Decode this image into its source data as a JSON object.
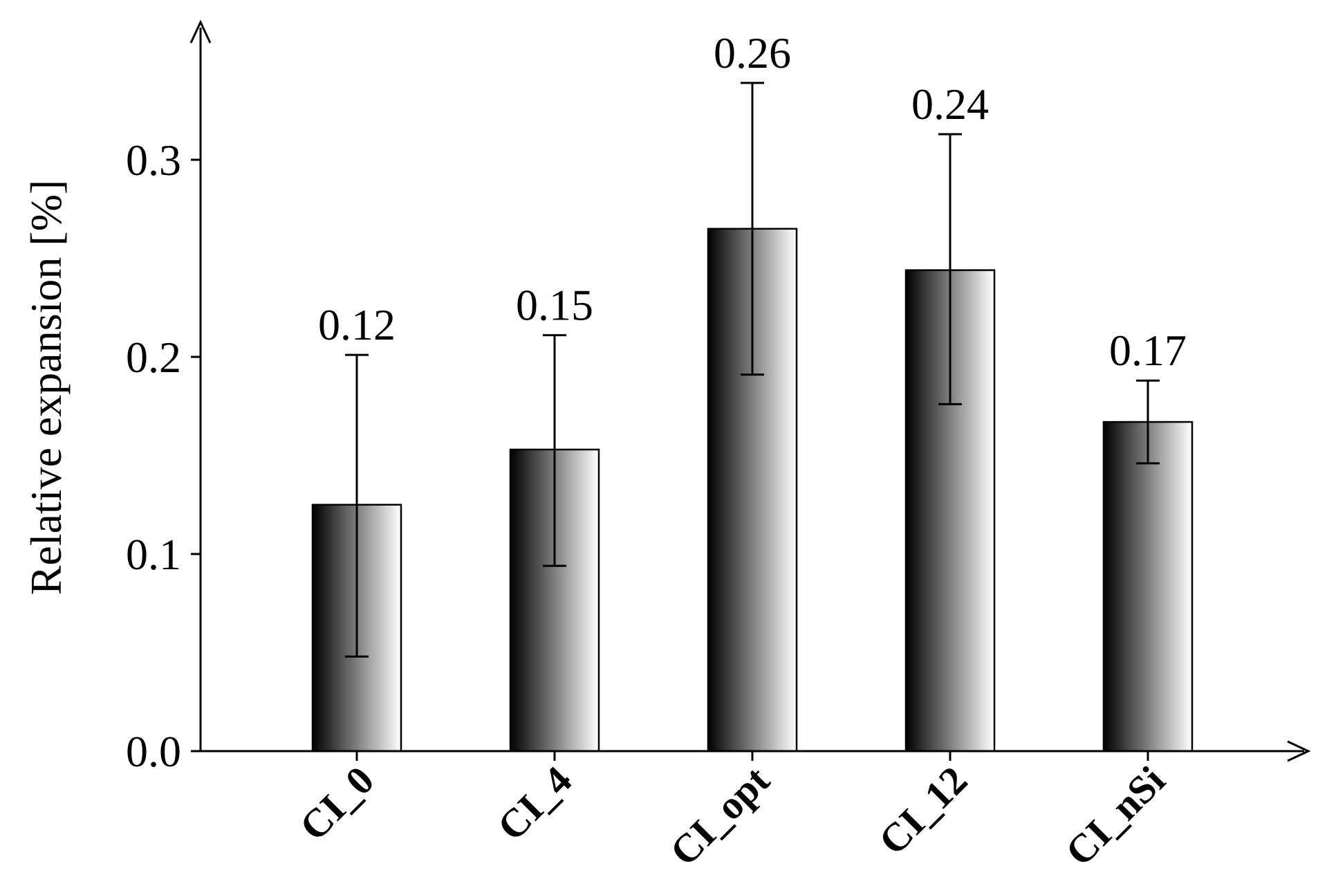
{
  "chart_data": {
    "type": "bar",
    "title": "",
    "xlabel": "",
    "ylabel": "Relative expansion [%]",
    "categories": [
      "CI_0",
      "CI_4",
      "CI_opt",
      "CI_12",
      "CI_nSi"
    ],
    "values": [
      0.125,
      0.153,
      0.265,
      0.244,
      0.167
    ],
    "value_labels": [
      "0.12",
      "0.15",
      "0.26",
      "0.24",
      "0.17"
    ],
    "error_low": [
      0.048,
      0.094,
      0.191,
      0.176,
      0.146
    ],
    "error_high": [
      0.201,
      0.211,
      0.339,
      0.313,
      0.188
    ],
    "ylim": [
      0,
      0.37
    ],
    "yticks": [
      0.0,
      0.1,
      0.2,
      0.3
    ],
    "ytick_labels": [
      "0.0",
      "0.1",
      "0.2",
      "0.3"
    ],
    "grid": false,
    "legend": "none",
    "bar_gradient": [
      "#000000",
      "#ffffff"
    ],
    "bar_stroke": "#000000"
  }
}
